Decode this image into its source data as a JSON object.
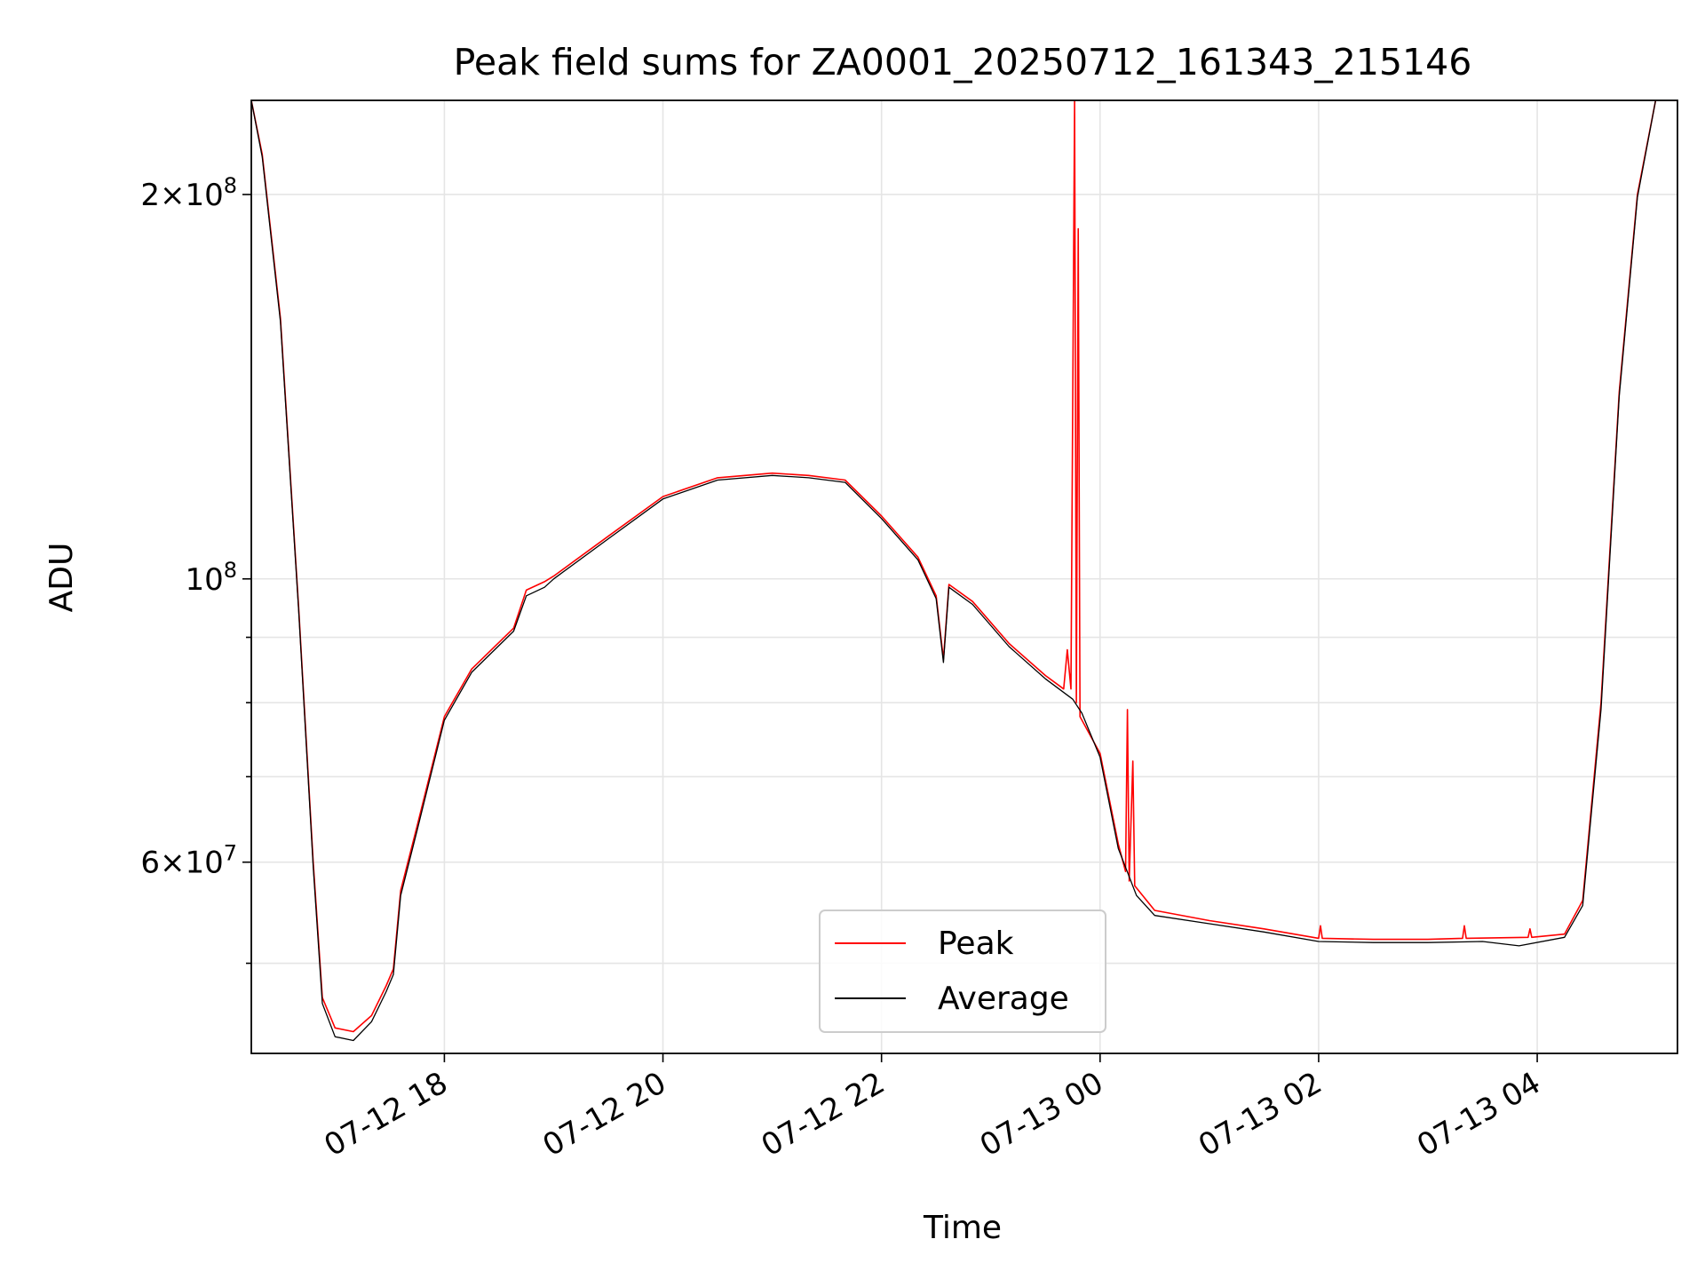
{
  "chart_data": {
    "type": "line",
    "title": "Peak field sums for ZA0001_20250712_161343_215146",
    "xlabel": "Time",
    "ylabel": "ADU",
    "yscale": "log",
    "ylim": [
      42500000,
      237000000
    ],
    "xlim": [
      "2025-07-12 16:14",
      "2025-07-13 05:17"
    ],
    "x_ticks": [
      {
        "value": "2025-07-12 18:00",
        "label": "07-12 18"
      },
      {
        "value": "2025-07-12 20:00",
        "label": "07-12 20"
      },
      {
        "value": "2025-07-12 22:00",
        "label": "07-12 22"
      },
      {
        "value": "2025-07-13 00:00",
        "label": "07-13 00"
      },
      {
        "value": "2025-07-13 02:00",
        "label": "07-13 02"
      },
      {
        "value": "2025-07-13 04:00",
        "label": "07-13 04"
      }
    ],
    "y_ticks": [
      {
        "value": 60000000,
        "base": "6",
        "exp": "7"
      },
      {
        "value": 100000000,
        "base": "",
        "exp": "8"
      },
      {
        "value": 200000000,
        "base": "2",
        "exp": "8"
      }
    ],
    "y_minor_ticks": [
      50000000,
      70000000,
      80000000,
      90000000
    ],
    "grid": true,
    "legend_position": "lower-center",
    "series": [
      {
        "name": "Peak",
        "color": "#ff0000",
        "points": [
          [
            "2025-07-12 16:14",
            237000000
          ],
          [
            "2025-07-12 16:20",
            215000000
          ],
          [
            "2025-07-12 16:30",
            160000000
          ],
          [
            "2025-07-12 16:40",
            95000000
          ],
          [
            "2025-07-12 16:48",
            60000000
          ],
          [
            "2025-07-12 16:53",
            47000000
          ],
          [
            "2025-07-12 17:00",
            44500000
          ],
          [
            "2025-07-12 17:10",
            44200000
          ],
          [
            "2025-07-12 17:20",
            45500000
          ],
          [
            "2025-07-12 17:28",
            48000000
          ],
          [
            "2025-07-12 17:32",
            49500000
          ],
          [
            "2025-07-12 17:36",
            57000000
          ],
          [
            "2025-07-12 17:45",
            64000000
          ],
          [
            "2025-07-12 18:00",
            78000000
          ],
          [
            "2025-07-12 18:15",
            85000000
          ],
          [
            "2025-07-12 18:38",
            91500000
          ],
          [
            "2025-07-12 18:45",
            98000000
          ],
          [
            "2025-07-12 18:55",
            99500000
          ],
          [
            "2025-07-12 19:00",
            100500000
          ],
          [
            "2025-07-12 19:30",
            108000000
          ],
          [
            "2025-07-12 20:00",
            116000000
          ],
          [
            "2025-07-12 20:30",
            120000000
          ],
          [
            "2025-07-12 21:00",
            121000000
          ],
          [
            "2025-07-12 21:20",
            120500000
          ],
          [
            "2025-07-12 21:40",
            119500000
          ],
          [
            "2025-07-12 22:00",
            112000000
          ],
          [
            "2025-07-12 22:20",
            104000000
          ],
          [
            "2025-07-12 22:30",
            97000000
          ],
          [
            "2025-07-12 22:34",
            86500000
          ],
          [
            "2025-07-12 22:37",
            99000000
          ],
          [
            "2025-07-12 22:50",
            96000000
          ],
          [
            "2025-07-12 23:10",
            89000000
          ],
          [
            "2025-07-12 23:30",
            84000000
          ],
          [
            "2025-07-12 23:40",
            82000000
          ],
          [
            "2025-07-12 23:42",
            88000000
          ],
          [
            "2025-07-12 23:44",
            82000000
          ],
          [
            "2025-07-12 23:46",
            237000000
          ],
          [
            "2025-07-12 23:47",
            80000000
          ],
          [
            "2025-07-12 23:48",
            188000000
          ],
          [
            "2025-07-12 23:49",
            78000000
          ],
          [
            "2025-07-13 00:00",
            73000000
          ],
          [
            "2025-07-13 00:10",
            62000000
          ],
          [
            "2025-07-13 00:14",
            59000000
          ],
          [
            "2025-07-13 00:15",
            79000000
          ],
          [
            "2025-07-13 00:16",
            58000000
          ],
          [
            "2025-07-13 00:18",
            72000000
          ],
          [
            "2025-07-13 00:19",
            57500000
          ],
          [
            "2025-07-13 00:30",
            55000000
          ],
          [
            "2025-07-13 01:00",
            54000000
          ],
          [
            "2025-07-13 01:30",
            53200000
          ],
          [
            "2025-07-13 02:00",
            52300000
          ],
          [
            "2025-07-13 02:01",
            53500000
          ],
          [
            "2025-07-13 02:02",
            52300000
          ],
          [
            "2025-07-13 02:30",
            52200000
          ],
          [
            "2025-07-13 03:00",
            52200000
          ],
          [
            "2025-07-13 03:19",
            52300000
          ],
          [
            "2025-07-13 03:20",
            53500000
          ],
          [
            "2025-07-13 03:21",
            52300000
          ],
          [
            "2025-07-13 03:55",
            52400000
          ],
          [
            "2025-07-13 03:56",
            53200000
          ],
          [
            "2025-07-13 03:57",
            52400000
          ],
          [
            "2025-07-13 04:15",
            52700000
          ],
          [
            "2025-07-13 04:25",
            56000000
          ],
          [
            "2025-07-13 04:35",
            80000000
          ],
          [
            "2025-07-13 04:45",
            140000000
          ],
          [
            "2025-07-13 04:55",
            200000000
          ],
          [
            "2025-07-13 05:05",
            237000000
          ],
          [
            "2025-07-13 05:17",
            237000000
          ]
        ]
      },
      {
        "name": "Average",
        "color": "#000000",
        "points": [
          [
            "2025-07-12 16:14",
            237000000
          ],
          [
            "2025-07-12 16:20",
            214000000
          ],
          [
            "2025-07-12 16:30",
            159000000
          ],
          [
            "2025-07-12 16:40",
            94500000
          ],
          [
            "2025-07-12 16:48",
            59500000
          ],
          [
            "2025-07-12 16:53",
            46500000
          ],
          [
            "2025-07-12 17:00",
            43800000
          ],
          [
            "2025-07-12 17:10",
            43500000
          ],
          [
            "2025-07-12 17:20",
            45000000
          ],
          [
            "2025-07-12 17:28",
            47500000
          ],
          [
            "2025-07-12 17:32",
            49000000
          ],
          [
            "2025-07-12 17:36",
            56500000
          ],
          [
            "2025-07-12 17:45",
            63500000
          ],
          [
            "2025-07-12 18:00",
            77500000
          ],
          [
            "2025-07-12 18:15",
            84500000
          ],
          [
            "2025-07-12 18:38",
            91000000
          ],
          [
            "2025-07-12 18:45",
            97000000
          ],
          [
            "2025-07-12 18:55",
            98500000
          ],
          [
            "2025-07-12 19:00",
            100000000
          ],
          [
            "2025-07-12 19:30",
            107500000
          ],
          [
            "2025-07-12 20:00",
            115500000
          ],
          [
            "2025-07-12 20:30",
            119500000
          ],
          [
            "2025-07-12 21:00",
            120500000
          ],
          [
            "2025-07-12 21:20",
            120000000
          ],
          [
            "2025-07-12 21:40",
            119000000
          ],
          [
            "2025-07-12 22:00",
            111500000
          ],
          [
            "2025-07-12 22:20",
            103500000
          ],
          [
            "2025-07-12 22:30",
            96500000
          ],
          [
            "2025-07-12 22:34",
            86000000
          ],
          [
            "2025-07-12 22:37",
            98500000
          ],
          [
            "2025-07-12 22:50",
            95500000
          ],
          [
            "2025-07-12 23:10",
            88500000
          ],
          [
            "2025-07-12 23:30",
            83500000
          ],
          [
            "2025-07-12 23:45",
            80500000
          ],
          [
            "2025-07-12 23:50",
            78500000
          ],
          [
            "2025-07-13 00:00",
            72500000
          ],
          [
            "2025-07-13 00:10",
            61500000
          ],
          [
            "2025-07-13 00:20",
            56500000
          ],
          [
            "2025-07-13 00:30",
            54500000
          ],
          [
            "2025-07-13 01:00",
            53700000
          ],
          [
            "2025-07-13 01:30",
            52900000
          ],
          [
            "2025-07-13 02:00",
            52000000
          ],
          [
            "2025-07-13 02:30",
            51900000
          ],
          [
            "2025-07-13 03:00",
            51900000
          ],
          [
            "2025-07-13 03:30",
            52000000
          ],
          [
            "2025-07-13 03:50",
            51600000
          ],
          [
            "2025-07-13 04:15",
            52400000
          ],
          [
            "2025-07-13 04:25",
            55500000
          ],
          [
            "2025-07-13 04:35",
            79000000
          ],
          [
            "2025-07-13 04:45",
            139000000
          ],
          [
            "2025-07-13 04:55",
            199000000
          ],
          [
            "2025-07-13 05:05",
            237000000
          ],
          [
            "2025-07-13 05:17",
            237000000
          ]
        ]
      }
    ]
  }
}
